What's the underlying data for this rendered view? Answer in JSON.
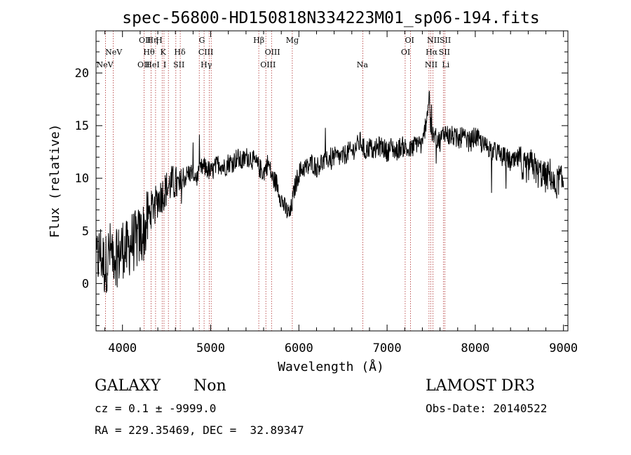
{
  "chart_data": {
    "type": "line",
    "title": "spec-56800-HD150818N334223M01_sp06-194.fits",
    "xlabel": "Wavelength (Å)",
    "ylabel": "Flux (relative)",
    "xlim": [
      3700,
      9050
    ],
    "ylim": [
      -4.5,
      24
    ],
    "xticks": [
      4000,
      5000,
      6000,
      7000,
      8000,
      9000
    ],
    "yticks": [
      0,
      5,
      10,
      15,
      20
    ],
    "grid": false,
    "series": [
      {
        "color": "#000000",
        "x": [
          3700,
          3750,
          3800,
          3850,
          3900,
          3950,
          4000,
          4050,
          4100,
          4150,
          4200,
          4250,
          4300,
          4350,
          4400,
          4450,
          4500,
          4550,
          4600,
          4650,
          4700,
          4750,
          4800,
          4850,
          4900,
          4950,
          5000,
          5050,
          5100,
          5150,
          5200,
          5250,
          5300,
          5350,
          5400,
          5450,
          5500,
          5550,
          5600,
          5650,
          5700,
          5750,
          5800,
          5850,
          5900,
          5950,
          6000,
          6050,
          6100,
          6150,
          6200,
          6250,
          6300,
          6350,
          6400,
          6450,
          6500,
          6550,
          6600,
          6650,
          6700,
          6750,
          6800,
          6850,
          6900,
          6950,
          7000,
          7050,
          7100,
          7150,
          7200,
          7250,
          7300,
          7350,
          7400,
          7450,
          7480,
          7500,
          7550,
          7600,
          7650,
          7700,
          7750,
          7800,
          7850,
          7900,
          7950,
          8000,
          8050,
          8100,
          8150,
          8200,
          8250,
          8300,
          8350,
          8400,
          8450,
          8500,
          8550,
          8600,
          8650,
          8700,
          8750,
          8800,
          8850,
          8900,
          8950,
          9000
        ],
        "values": [
          2.0,
          3.0,
          1.5,
          3.0,
          3.0,
          2.5,
          3.5,
          3.0,
          4.0,
          4.0,
          4.5,
          5.0,
          6.5,
          7.5,
          8.0,
          8.5,
          9.0,
          9.5,
          9.5,
          9.0,
          10.0,
          10.5,
          10.5,
          10.0,
          11.0,
          11.0,
          10.5,
          11.0,
          11.5,
          11.0,
          11.5,
          11.5,
          12.0,
          11.5,
          12.0,
          12.0,
          11.5,
          11.0,
          10.5,
          11.5,
          10.0,
          9.5,
          8.0,
          7.0,
          6.5,
          9.0,
          10.5,
          11.0,
          11.0,
          11.5,
          11.0,
          11.5,
          11.5,
          12.0,
          12.0,
          12.0,
          12.0,
          12.5,
          12.5,
          13.0,
          13.5,
          12.5,
          13.0,
          12.5,
          13.0,
          13.0,
          12.5,
          13.0,
          12.5,
          13.0,
          13.0,
          12.5,
          13.0,
          13.5,
          13.0,
          16.0,
          18.0,
          14.0,
          14.0,
          13.5,
          14.5,
          14.0,
          14.0,
          13.5,
          14.0,
          13.5,
          13.5,
          14.0,
          13.5,
          13.0,
          13.0,
          12.5,
          12.5,
          12.0,
          12.0,
          11.5,
          11.5,
          12.0,
          11.0,
          11.0,
          11.5,
          10.5,
          10.5,
          10.0,
          10.5,
          9.0,
          10.0,
          9.5
        ]
      }
    ],
    "annotations": [
      {
        "label": "NeV",
        "x": 3800,
        "row": 3
      },
      {
        "label": "NeV",
        "x": 3900,
        "row": 2
      },
      {
        "label": "OII",
        "x": 4255,
        "row": 1
      },
      {
        "label": "OII",
        "x": 4240,
        "row": 3
      },
      {
        "label": "Hη",
        "x": 4340,
        "row": 1
      },
      {
        "label": "H",
        "x": 4415,
        "row": 1
      },
      {
        "label": "Hθ",
        "x": 4300,
        "row": 2
      },
      {
        "label": "HeI",
        "x": 4340,
        "row": 3
      },
      {
        "label": "K",
        "x": 4460,
        "row": 2
      },
      {
        "label": "I",
        "x": 4480,
        "row": 3
      },
      {
        "label": "Hδ",
        "x": 4650,
        "row": 2
      },
      {
        "label": "SII",
        "x": 4640,
        "row": 3
      },
      {
        "label": "G",
        "x": 4900,
        "row": 1
      },
      {
        "label": "CIII",
        "x": 4945,
        "row": 2
      },
      {
        "label": "Hγ",
        "x": 4950,
        "row": 3
      },
      {
        "label": "Hβ",
        "x": 5545,
        "row": 1
      },
      {
        "label": "OIII",
        "x": 5700,
        "row": 2
      },
      {
        "label": "OIII",
        "x": 5650,
        "row": 3
      },
      {
        "label": "Mg",
        "x": 5925,
        "row": 1
      },
      {
        "label": "Na",
        "x": 6720,
        "row": 3
      },
      {
        "label": "OI",
        "x": 7255,
        "row": 1
      },
      {
        "label": "OI",
        "x": 7210,
        "row": 2
      },
      {
        "label": "NII",
        "x": 7525,
        "row": 1
      },
      {
        "label": "Hα",
        "x": 7505,
        "row": 2
      },
      {
        "label": "NII",
        "x": 7500,
        "row": 3
      },
      {
        "label": "SII",
        "x": 7660,
        "row": 1
      },
      {
        "label": "SII",
        "x": 7650,
        "row": 2
      },
      {
        "label": "Li",
        "x": 7665,
        "row": 3
      }
    ],
    "line_markers": [
      3808,
      3895,
      4245,
      4325,
      4375,
      4450,
      4470,
      4520,
      4605,
      4655,
      4870,
      4925,
      4985,
      5005,
      5545,
      5625,
      5690,
      5925,
      6725,
      7205,
      7265,
      7475,
      7495,
      7520,
      7640,
      7655
    ]
  },
  "info": {
    "class_label": "GALAXY",
    "subclass_label": "Non",
    "survey": "LAMOST DR3",
    "cz_line": "cz = 0.1 ± -9999.0",
    "obs_date": "Obs-Date: 20140522",
    "radec_line": "RA = 229.35469, DEC =  32.89347"
  }
}
